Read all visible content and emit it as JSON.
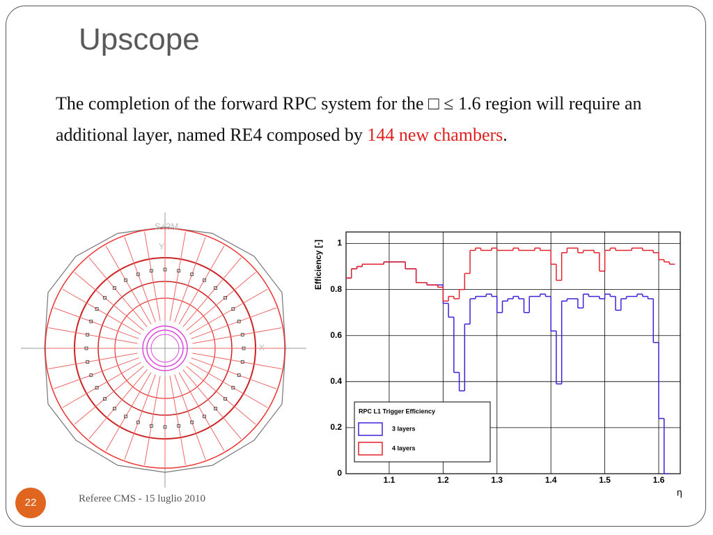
{
  "slide": {
    "title": "Upscope",
    "body": [
      "The completion of the forward RPC system for the □ ≤ 1.6 region will require an additional layer, named RE4 composed by ",
      "144 new chambers",
      "."
    ],
    "footer": "Referee CMS - 15 luglio 2010",
    "page_number": "22",
    "diagram_labels": [
      "S+3M",
      "Y",
      "X"
    ]
  },
  "chart_data": {
    "type": "step",
    "ylabel": "Efficiency [-]",
    "xlabel": "η",
    "x": [
      1.02,
      1.03,
      1.04,
      1.05,
      1.06,
      1.07,
      1.08,
      1.09,
      1.1,
      1.11,
      1.12,
      1.13,
      1.14,
      1.15,
      1.16,
      1.17,
      1.18,
      1.19,
      1.2,
      1.21,
      1.22,
      1.23,
      1.24,
      1.25,
      1.26,
      1.27,
      1.28,
      1.29,
      1.3,
      1.31,
      1.32,
      1.33,
      1.34,
      1.35,
      1.36,
      1.37,
      1.38,
      1.39,
      1.4,
      1.41,
      1.42,
      1.43,
      1.44,
      1.45,
      1.46,
      1.47,
      1.48,
      1.49,
      1.5,
      1.51,
      1.52,
      1.53,
      1.54,
      1.55,
      1.56,
      1.57,
      1.58,
      1.59,
      1.6,
      1.61,
      1.62
    ],
    "bin_width": 0.01,
    "series": [
      {
        "name": "3 layers",
        "color": "#3a22d8",
        "values": [
          0.85,
          0.89,
          0.9,
          0.91,
          0.91,
          0.91,
          0.91,
          0.92,
          0.92,
          0.92,
          0.92,
          0.89,
          0.89,
          0.83,
          0.83,
          0.82,
          0.82,
          0.82,
          0.74,
          0.68,
          0.44,
          0.36,
          0.65,
          0.76,
          0.77,
          0.77,
          0.78,
          0.77,
          0.7,
          0.75,
          0.76,
          0.77,
          0.76,
          0.7,
          0.77,
          0.77,
          0.78,
          0.77,
          0.62,
          0.39,
          0.75,
          0.76,
          0.76,
          0.72,
          0.78,
          0.77,
          0.77,
          0.76,
          0.78,
          0.77,
          0.71,
          0.76,
          0.77,
          0.77,
          0.78,
          0.77,
          0.76,
          0.57,
          0.24,
          0,
          null
        ]
      },
      {
        "name": "4 layers",
        "color": "#e4222b",
        "values": [
          0.85,
          0.89,
          0.9,
          0.91,
          0.91,
          0.91,
          0.91,
          0.92,
          0.92,
          0.92,
          0.92,
          0.89,
          0.89,
          0.83,
          0.83,
          0.82,
          0.82,
          0.81,
          0.75,
          0.77,
          0.76,
          0.8,
          0.87,
          0.97,
          0.98,
          0.97,
          0.97,
          0.98,
          0.97,
          0.97,
          0.97,
          0.98,
          0.97,
          0.97,
          0.97,
          0.98,
          0.97,
          0.97,
          0.91,
          0.84,
          0.96,
          0.98,
          0.98,
          0.96,
          0.97,
          0.97,
          0.96,
          0.88,
          0.97,
          0.98,
          0.97,
          0.97,
          0.97,
          0.98,
          0.98,
          0.97,
          0.97,
          0.96,
          0.93,
          0.92,
          0.91
        ]
      }
    ],
    "legend_title": "RPC L1 Trigger Efficiency",
    "legend": "lower-left",
    "xlim": [
      1.02,
      1.64
    ],
    "xticks": [
      1.1,
      1.2,
      1.3,
      1.4,
      1.5,
      1.6
    ],
    "ylim": [
      0,
      1.05
    ],
    "yticks": [
      0,
      0.2,
      0.4,
      0.6,
      0.8,
      1
    ],
    "grid": true
  }
}
